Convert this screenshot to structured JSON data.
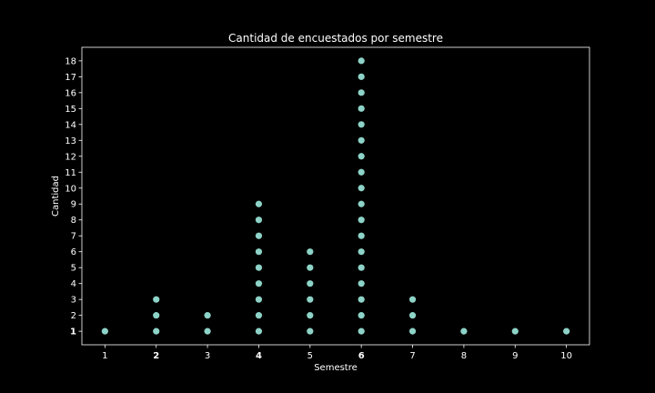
{
  "chart_data": {
    "type": "scatter",
    "title": "Cantidad de encuestados por semestre",
    "xlabel": "Semestre",
    "ylabel": "Cantidad",
    "xlim": [
      0.55,
      10.45
    ],
    "ylim": [
      0.15,
      18.85
    ],
    "xticks": [
      1,
      2,
      3,
      4,
      5,
      6,
      7,
      8,
      9,
      10
    ],
    "yticks": [
      1,
      2,
      3,
      4,
      5,
      6,
      7,
      8,
      9,
      10,
      11,
      12,
      13,
      14,
      15,
      16,
      17,
      18
    ],
    "bold_xticks": [
      2,
      4,
      6
    ],
    "grid": false,
    "background_color": "#000000",
    "axes_color": "#ffffff",
    "marker_color": "#8dd3c7",
    "series": [
      {
        "counts": {
          "1": 1,
          "2": 3,
          "3": 2,
          "4": 9,
          "5": 6,
          "6": 18,
          "7": 3,
          "8": 1,
          "9": 1,
          "10": 1
        }
      }
    ]
  }
}
